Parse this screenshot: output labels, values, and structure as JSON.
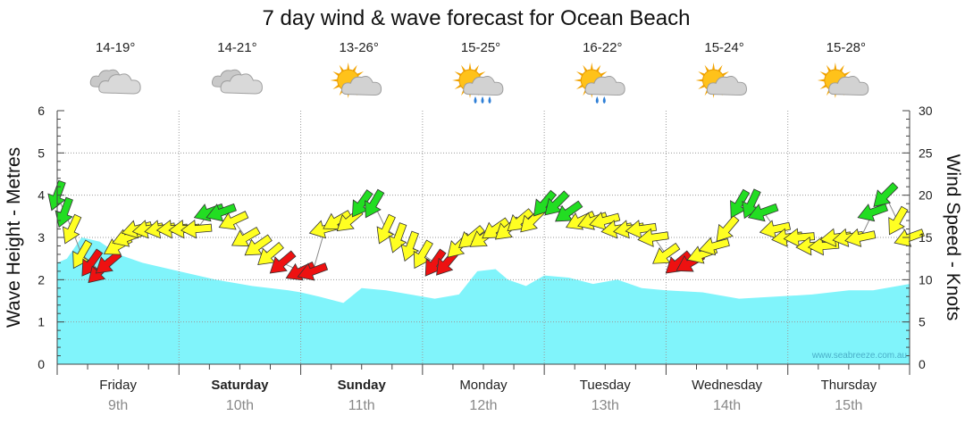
{
  "chart_data": {
    "type": "area",
    "title": "7 day wind & wave forecast for Ocean Beach",
    "ylabel": "Wave Height - Metres",
    "y2label": "Wind Speed - Knots",
    "ylim": [
      0,
      6
    ],
    "y2lim": [
      0,
      30
    ],
    "yticks": [
      "0",
      "1",
      "2",
      "3",
      "4",
      "5",
      "6"
    ],
    "y2ticks": [
      "0",
      "5",
      "10",
      "15",
      "20",
      "25",
      "30"
    ],
    "grid": true,
    "watermark": "www.seabreeze.com.au",
    "days": [
      {
        "name": "Friday",
        "date": "9th",
        "temp": "14-19°",
        "weather": "cloud-icon",
        "bold": false
      },
      {
        "name": "Saturday",
        "date": "10th",
        "temp": "14-21°",
        "weather": "cloud-icon",
        "bold": true
      },
      {
        "name": "Sunday",
        "date": "11th",
        "temp": "13-26°",
        "weather": "sun-cloud-icon",
        "bold": true
      },
      {
        "name": "Monday",
        "date": "12th",
        "temp": "15-25°",
        "weather": "sun-rain-icon",
        "bold": false
      },
      {
        "name": "Tuesday",
        "date": "13th",
        "temp": "16-22°",
        "weather": "sun-rain-icon",
        "bold": false
      },
      {
        "name": "Wednesday",
        "date": "14th",
        "temp": "15-24°",
        "weather": "sun-cloud-icon",
        "bold": false
      },
      {
        "name": "Thursday",
        "date": "15th",
        "temp": "15-28°",
        "weather": "sun-cloud-icon",
        "bold": false
      }
    ],
    "wave_series": {
      "x_days": [
        0,
        0.08,
        0.2,
        0.35,
        0.5,
        0.7,
        1.0,
        1.3,
        1.6,
        1.9,
        2.0,
        2.15,
        2.35,
        2.5,
        2.7,
        2.9,
        3.0,
        3.1,
        3.3,
        3.45,
        3.6,
        3.7,
        3.85,
        4.0,
        4.2,
        4.4,
        4.6,
        4.8,
        5.0,
        5.3,
        5.6,
        5.9,
        6.2,
        6.5,
        6.7,
        7.0
      ],
      "values": [
        2.4,
        2.5,
        3.0,
        2.9,
        2.6,
        2.4,
        2.2,
        2.0,
        1.85,
        1.75,
        1.7,
        1.6,
        1.45,
        1.8,
        1.75,
        1.65,
        1.6,
        1.55,
        1.65,
        2.2,
        2.25,
        2.0,
        1.85,
        2.1,
        2.05,
        1.9,
        2.0,
        1.8,
        1.75,
        1.7,
        1.55,
        1.6,
        1.65,
        1.75,
        1.75,
        1.9
      ]
    },
    "wind_series": {
      "x_days": [
        0.0,
        0.06,
        0.12,
        0.2,
        0.28,
        0.35,
        0.42,
        0.5,
        0.58,
        0.66,
        0.75,
        0.85,
        0.95,
        1.05,
        1.15,
        1.25,
        1.35,
        1.45,
        1.55,
        1.65,
        1.75,
        1.85,
        2.0,
        2.1,
        2.2,
        2.3,
        2.4,
        2.5,
        2.6,
        2.7,
        2.8,
        2.9,
        3.0,
        3.1,
        3.2,
        3.3,
        3.4,
        3.5,
        3.6,
        3.7,
        3.8,
        3.9,
        4.0,
        4.1,
        4.2,
        4.3,
        4.4,
        4.5,
        4.6,
        4.7,
        4.8,
        4.9,
        5.0,
        5.1,
        5.2,
        5.3,
        5.4,
        5.5,
        5.6,
        5.7,
        5.8,
        5.9,
        6.0,
        6.1,
        6.2,
        6.3,
        6.4,
        6.5,
        6.6,
        6.7,
        6.8,
        6.9,
        7.0
      ],
      "knots": [
        20,
        18,
        16,
        13,
        12,
        11,
        12,
        14,
        15,
        16,
        16,
        16,
        16,
        16,
        16,
        18,
        18,
        17,
        15,
        14,
        13,
        12,
        11,
        11,
        16,
        17,
        17,
        19,
        19,
        16,
        15,
        14,
        13,
        12,
        12,
        14,
        15,
        15,
        16,
        16,
        17,
        17,
        19,
        19,
        18,
        17,
        17,
        17,
        16,
        16,
        16,
        15,
        13,
        12,
        12,
        13,
        14,
        16,
        19,
        19,
        18,
        16,
        15,
        15,
        14,
        14,
        15,
        15,
        15,
        18,
        20,
        17,
        15
      ],
      "direction_deg": [
        200,
        200,
        205,
        210,
        215,
        225,
        230,
        240,
        250,
        255,
        260,
        260,
        265,
        265,
        265,
        250,
        250,
        245,
        240,
        235,
        230,
        230,
        245,
        250,
        255,
        240,
        230,
        215,
        210,
        205,
        200,
        200,
        210,
        215,
        220,
        225,
        230,
        235,
        235,
        230,
        230,
        225,
        220,
        225,
        235,
        245,
        250,
        255,
        260,
        260,
        262,
        262,
        235,
        230,
        240,
        250,
        255,
        220,
        210,
        205,
        250,
        258,
        262,
        265,
        265,
        265,
        262,
        260,
        258,
        250,
        225,
        210,
        250
      ]
    }
  }
}
